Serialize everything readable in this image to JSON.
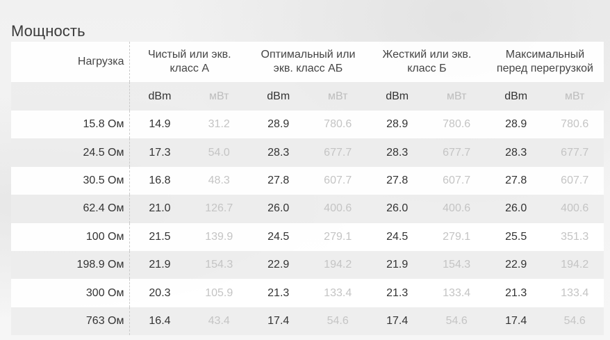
{
  "title": "Мощность",
  "table": {
    "load_header": "Нагрузка",
    "groups": [
      {
        "line1": "Чистый или экв.",
        "line2": "класс А"
      },
      {
        "line1": "Оптимальный или",
        "line2": "экв. класс АБ"
      },
      {
        "line1": "Жесткий или экв.",
        "line2": "класс Б"
      },
      {
        "line1": "Максимальный",
        "line2": "перед перегрузкой"
      }
    ],
    "unit_dbm": "dBm",
    "unit_mw": "мВт",
    "rows": [
      {
        "load": "15.8 Ом",
        "vals": [
          "14.9",
          "31.2",
          "28.9",
          "780.6",
          "28.9",
          "780.6",
          "28.9",
          "780.6"
        ]
      },
      {
        "load": "24.5 Ом",
        "vals": [
          "17.3",
          "54.0",
          "28.3",
          "677.7",
          "28.3",
          "677.7",
          "28.3",
          "677.7"
        ]
      },
      {
        "load": "30.5 Ом",
        "vals": [
          "16.8",
          "48.3",
          "27.8",
          "607.7",
          "27.8",
          "607.7",
          "27.8",
          "607.7"
        ]
      },
      {
        "load": "62.4 Ом",
        "vals": [
          "21.0",
          "126.7",
          "26.0",
          "400.6",
          "26.0",
          "400.6",
          "26.0",
          "400.6"
        ]
      },
      {
        "load": "100 Ом",
        "vals": [
          "21.5",
          "139.9",
          "24.5",
          "279.1",
          "24.5",
          "279.1",
          "25.5",
          "351.3"
        ]
      },
      {
        "load": "198.9 Ом",
        "vals": [
          "21.9",
          "154.3",
          "22.9",
          "194.2",
          "21.9",
          "154.3",
          "22.9",
          "194.2"
        ]
      },
      {
        "load": "300 Ом",
        "vals": [
          "20.3",
          "105.9",
          "21.3",
          "133.4",
          "21.3",
          "133.4",
          "21.3",
          "133.4"
        ]
      },
      {
        "load": "763 Ом",
        "vals": [
          "16.4",
          "43.4",
          "17.4",
          "54.6",
          "17.4",
          "54.6",
          "17.4",
          "54.6"
        ]
      }
    ]
  }
}
